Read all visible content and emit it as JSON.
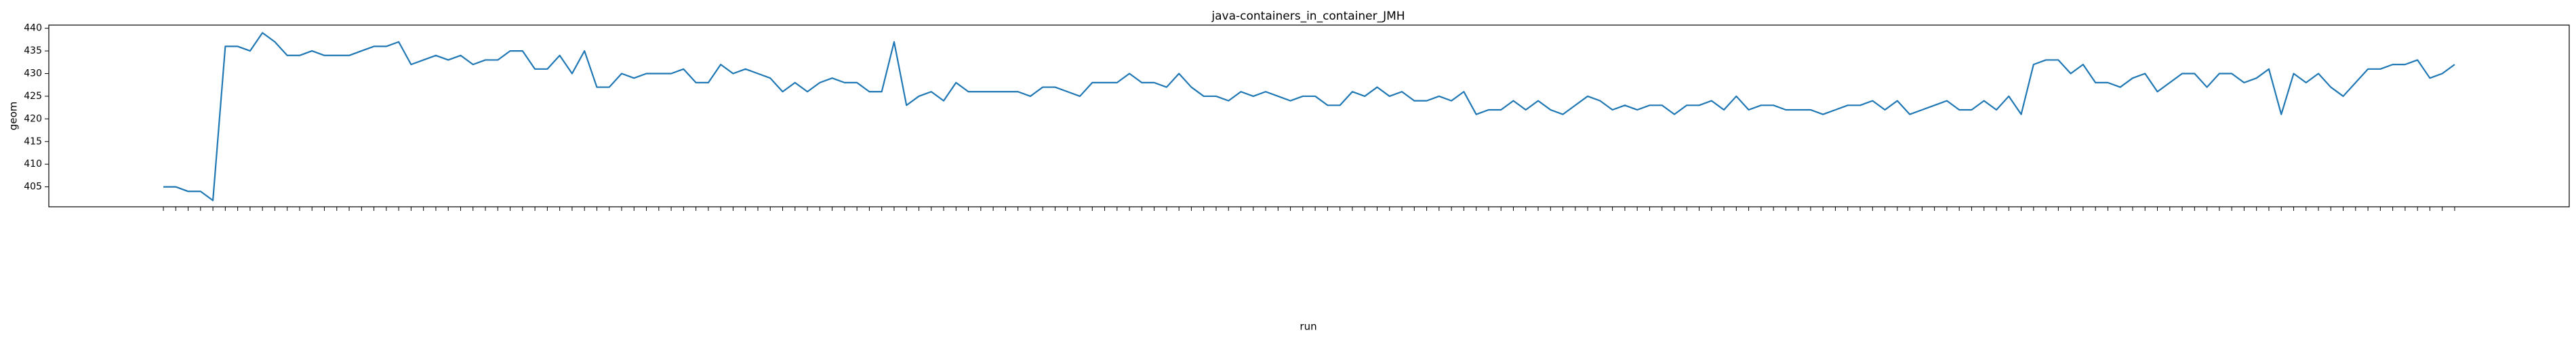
{
  "chart_data": {
    "type": "line",
    "title": "java-containers_in_container_JMH",
    "x_label": "run",
    "y_label": "geom",
    "categories": [
      null,
      null,
      null,
      null,
      null,
      null,
      null,
      null,
      null,
      null,
      null,
      null,
      null,
      null,
      null,
      null,
      null,
      null,
      null,
      null,
      null,
      null,
      null,
      null,
      null,
      null,
      null,
      null,
      null,
      null,
      null,
      null,
      null,
      null,
      null,
      null,
      null,
      null,
      null,
      null,
      null,
      null,
      null,
      null,
      null,
      null,
      null,
      null,
      null,
      null,
      null,
      null,
      null,
      null,
      null,
      null,
      null,
      null,
      null,
      null,
      null,
      null,
      null,
      null,
      null,
      null,
      null,
      null,
      null,
      null,
      null,
      null,
      null,
      null,
      null,
      null,
      null,
      null,
      null,
      null,
      null,
      null,
      null,
      null,
      null,
      null,
      null,
      null,
      null,
      null,
      null,
      null,
      null,
      null,
      null,
      null,
      null,
      null,
      null,
      null,
      null,
      null,
      null,
      null,
      null,
      null,
      null,
      null,
      null,
      null,
      null,
      null,
      null,
      null,
      null,
      null,
      null,
      null,
      null,
      null,
      null,
      null,
      null,
      null,
      null,
      null,
      null,
      null,
      null,
      null,
      null,
      null,
      null,
      null,
      null,
      null,
      null,
      null,
      null,
      null,
      null,
      null,
      null,
      null,
      null,
      null,
      null,
      null,
      null,
      null,
      null,
      null,
      null,
      null,
      null,
      null,
      null,
      null,
      null,
      null,
      null,
      null,
      null,
      null,
      null,
      null,
      null,
      null,
      null,
      null,
      null,
      null,
      null,
      null,
      null,
      null,
      null,
      null,
      null,
      null,
      null,
      null,
      null,
      null,
      null,
      null
    ],
    "series": [
      {
        "name": "geom",
        "color": "#1f77b4",
        "values": [
          405,
          405,
          404,
          404,
          402,
          436,
          436,
          435,
          439,
          437,
          434,
          434,
          435,
          434,
          434,
          434,
          435,
          436,
          436,
          437,
          432,
          433,
          434,
          433,
          434,
          432,
          433,
          433,
          435,
          435,
          431,
          431,
          434,
          430,
          435,
          427,
          427,
          430,
          429,
          430,
          430,
          430,
          431,
          428,
          428,
          432,
          430,
          431,
          430,
          429,
          426,
          428,
          426,
          428,
          429,
          428,
          428,
          426,
          426,
          437,
          423,
          425,
          426,
          424,
          428,
          426,
          426,
          426,
          426,
          426,
          425,
          427,
          427,
          426,
          425,
          428,
          428,
          428,
          430,
          428,
          428,
          427,
          430,
          427,
          425,
          425,
          424,
          426,
          425,
          426,
          425,
          424,
          425,
          425,
          423,
          423,
          426,
          425,
          427,
          425,
          426,
          424,
          424,
          425,
          424,
          426,
          421,
          422,
          422,
          424,
          422,
          424,
          422,
          421,
          423,
          425,
          424,
          422,
          423,
          422,
          423,
          423,
          421,
          423,
          423,
          424,
          422,
          425,
          422,
          423,
          423,
          422,
          422,
          422,
          421,
          422,
          423,
          423,
          424,
          422,
          424,
          421,
          422,
          423,
          424,
          422,
          422,
          424,
          422,
          425,
          421,
          432,
          433,
          433,
          430,
          432,
          428,
          428,
          427,
          429,
          430,
          426,
          428,
          430,
          430,
          427,
          430,
          430,
          428,
          429,
          431,
          421,
          430,
          428,
          430,
          427,
          425,
          428,
          431,
          431,
          432,
          432,
          433,
          429,
          430,
          432
        ]
      }
    ],
    "ylim": [
      400.6,
      440.7
    ],
    "yticks": [
      405,
      410,
      415,
      420,
      425,
      430,
      435,
      440
    ],
    "grid": false
  }
}
